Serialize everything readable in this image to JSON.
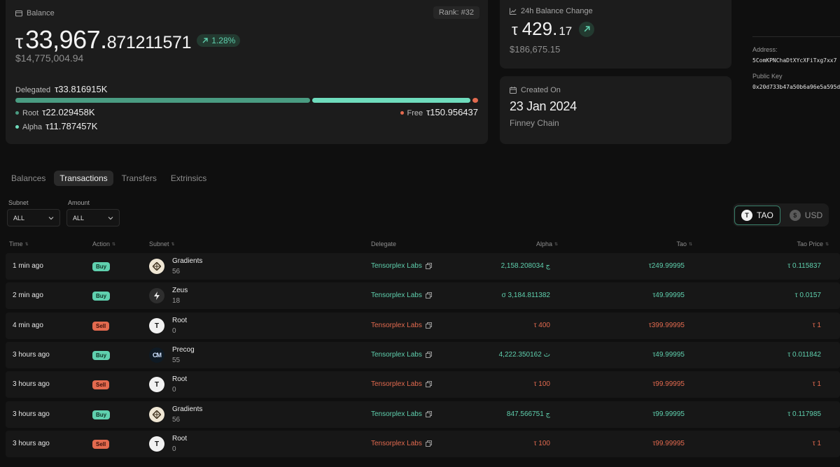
{
  "balance_card": {
    "label": "Balance",
    "rank": "Rank: #32",
    "symbol": "τ",
    "int_part": "33,967.",
    "dec_part": "871211571",
    "pct_change": "1.28%",
    "usd": "$14,775,004.94",
    "delegated_label": "Delegated",
    "delegated_value": "τ33.816915K",
    "root_label": "Root",
    "root_value": "τ22.029458K",
    "alpha_label": "Alpha",
    "alpha_value": "τ11.787457K",
    "free_label": "Free",
    "free_value": "τ150.956437"
  },
  "change_card": {
    "label": "24h Balance Change",
    "symbol": "τ",
    "int_part": "429.",
    "dec_part": "17",
    "usd": "$186,675.15"
  },
  "created_card": {
    "label": "Created On",
    "date": "23 Jan 2024",
    "chain": "Finney Chain"
  },
  "address_panel": {
    "address_label": "Address:",
    "address": "5ComKPNChaDtXYcXFiTxg7xx7",
    "pubkey_label": "Public Key",
    "pubkey": "0x20d733b47a50b6a96e5a595d"
  },
  "tabs": [
    "Balances",
    "Transactions",
    "Transfers",
    "Extrinsics"
  ],
  "filters": {
    "subnet_label": "Subnet",
    "subnet_value": "ALL",
    "amount_label": "Amount",
    "amount_value": "ALL"
  },
  "currency": {
    "tao": "TAO",
    "usd": "USD"
  },
  "table": {
    "headers": {
      "time": "Time",
      "action": "Action",
      "subnet": "Subnet",
      "delegate": "Delegate",
      "alpha": "Alpha",
      "tao": "Tao",
      "tao_price": "Tao Price"
    },
    "rows": [
      {
        "time": "1 min ago",
        "action": "Buy",
        "subnet": "Gradients",
        "netuid": "56",
        "delegate": "Tensorplex Labs",
        "alpha": "ج 2,158.208034",
        "tao": "τ249.99995",
        "price": "τ 0.115837",
        "icon": "gradients-icon"
      },
      {
        "time": "2 min ago",
        "action": "Buy",
        "subnet": "Zeus",
        "netuid": "18",
        "delegate": "Tensorplex Labs",
        "alpha": "σ 3,184.811382",
        "tao": "τ49.99995",
        "price": "τ 0.0157",
        "icon": "zeus-icon"
      },
      {
        "time": "4 min ago",
        "action": "Sell",
        "subnet": "Root",
        "netuid": "0",
        "delegate": "Tensorplex Labs",
        "alpha": "τ 400",
        "tao": "τ399.99995",
        "price": "τ 1",
        "icon": "root-icon"
      },
      {
        "time": "3 hours ago",
        "action": "Buy",
        "subnet": "Precog",
        "netuid": "55",
        "delegate": "Tensorplex Labs",
        "alpha": "ث 4,222.350162",
        "tao": "τ49.99995",
        "price": "τ 0.011842",
        "icon": "precog-icon"
      },
      {
        "time": "3 hours ago",
        "action": "Sell",
        "subnet": "Root",
        "netuid": "0",
        "delegate": "Tensorplex Labs",
        "alpha": "τ 100",
        "tao": "τ99.99995",
        "price": "τ 1",
        "icon": "root-icon"
      },
      {
        "time": "3 hours ago",
        "action": "Buy",
        "subnet": "Gradients",
        "netuid": "56",
        "delegate": "Tensorplex Labs",
        "alpha": "ج 847.566751",
        "tao": "τ99.99995",
        "price": "τ 0.117985",
        "icon": "gradients-icon"
      },
      {
        "time": "3 hours ago",
        "action": "Sell",
        "subnet": "Root",
        "netuid": "0",
        "delegate": "Tensorplex Labs",
        "alpha": "τ 100",
        "tao": "τ99.99995",
        "price": "τ 1",
        "icon": "root-icon"
      }
    ]
  },
  "colors": {
    "accent_green": "#5fd0ae",
    "sell_red": "#e36a4f",
    "card_bg": "#1c1c1c",
    "page_bg": "#0f0f0f"
  }
}
